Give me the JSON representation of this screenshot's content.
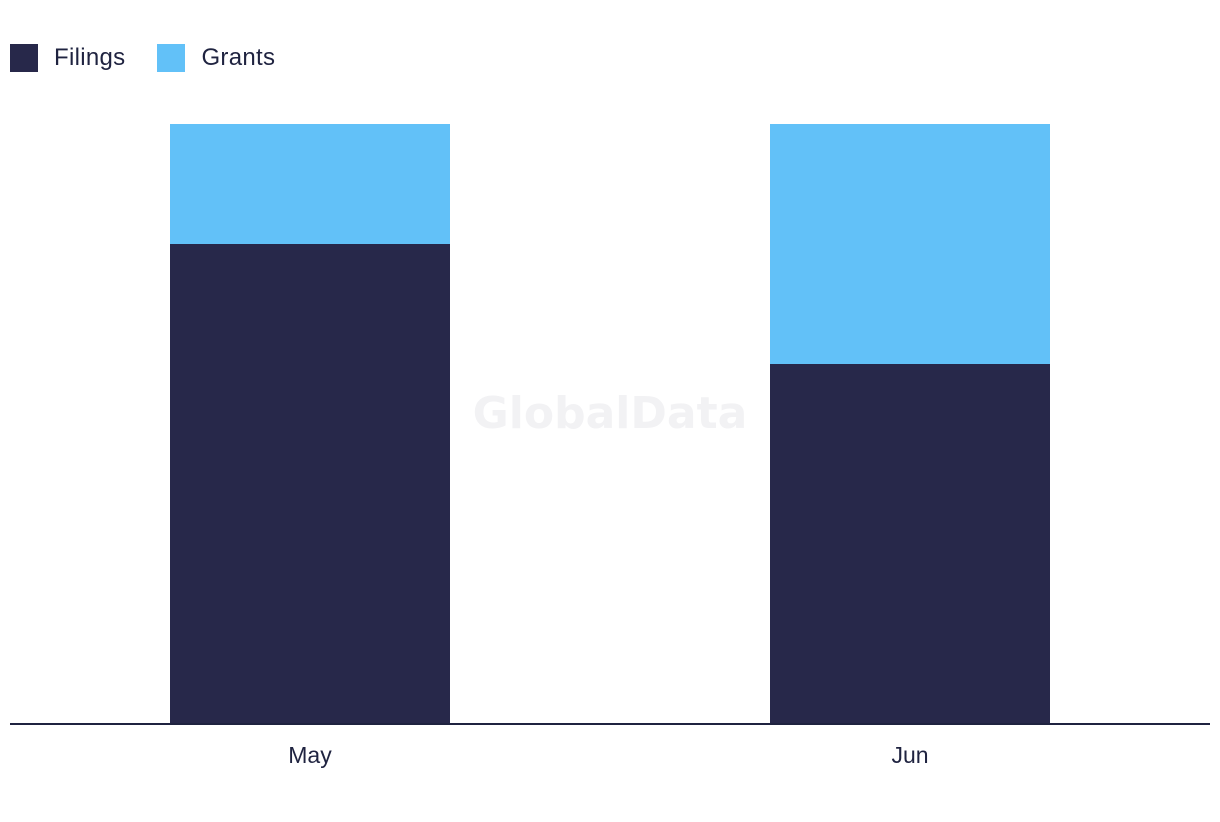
{
  "legend": {
    "items": [
      {
        "label": "Filings",
        "color": "#27284a"
      },
      {
        "label": "Grants",
        "color": "#62c1f8"
      }
    ]
  },
  "watermark": "GlobalData",
  "chart_data": {
    "type": "bar",
    "stacked": true,
    "categories": [
      "May",
      "Jun"
    ],
    "series": [
      {
        "name": "Filings",
        "color": "#27284a",
        "values": [
          4,
          3
        ]
      },
      {
        "name": "Grants",
        "color": "#62c1f8",
        "values": [
          1,
          2
        ]
      }
    ],
    "ylim": [
      0,
      5
    ],
    "grid": false,
    "legend_position": "top-left"
  }
}
